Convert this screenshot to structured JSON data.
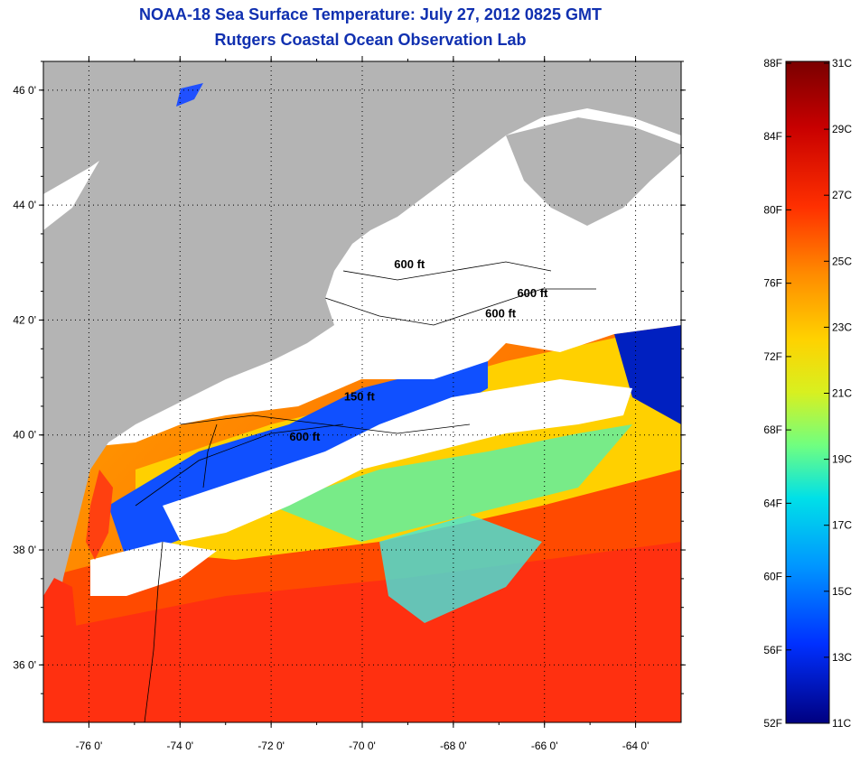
{
  "header": {
    "title": "NOAA-18 Sea Surface Temperature:  July 27, 2012 0825 GMT",
    "subtitle": "Rutgers Coastal Ocean Observation Lab"
  },
  "map": {
    "lat_range": [
      35,
      46.5
    ],
    "lon_range": [
      -77,
      -63
    ],
    "lat_ticks": [
      {
        "value": 46,
        "label": "46 0'"
      },
      {
        "value": 44,
        "label": "44 0'"
      },
      {
        "value": 42,
        "label": "42 0'"
      },
      {
        "value": 40,
        "label": "40 0'"
      },
      {
        "value": 38,
        "label": "38 0'"
      },
      {
        "value": 36,
        "label": "36 0'"
      }
    ],
    "lon_ticks": [
      {
        "value": -76,
        "label": "-76 0'"
      },
      {
        "value": -74,
        "label": "-74 0'"
      },
      {
        "value": -72,
        "label": "-72 0'"
      },
      {
        "value": -70,
        "label": "-70 0'"
      },
      {
        "value": -68,
        "label": "-68 0'"
      },
      {
        "value": -66,
        "label": "-66 0'"
      },
      {
        "value": -64,
        "label": "-64 0'"
      }
    ],
    "depth_labels": [
      {
        "text": "600 ft",
        "lon": -69.3,
        "lat": 42.9
      },
      {
        "text": "600 ft",
        "lon": -66.6,
        "lat": 42.4
      },
      {
        "text": "600 ft",
        "lon": -67.3,
        "lat": 42.05
      },
      {
        "text": "150 ft",
        "lon": -70.4,
        "lat": 40.6
      },
      {
        "text": "600 ft",
        "lon": -71.6,
        "lat": 39.9
      }
    ],
    "land_color": "#b4b4b4",
    "cloud_color": "#ffffff"
  },
  "colorbar": {
    "fahrenheit": [
      "88F",
      "84F",
      "80F",
      "76F",
      "72F",
      "68F",
      "64F",
      "60F",
      "56F",
      "52F"
    ],
    "celsius": [
      "31C",
      "29C",
      "27C",
      "25C",
      "23C",
      "21C",
      "19C",
      "17C",
      "15C",
      "13C",
      "11C"
    ],
    "colors": [
      "#7a0000",
      "#d00000",
      "#ff2a00",
      "#ff7a00",
      "#ffcc00",
      "#e6f000",
      "#80ff70",
      "#00e8e0",
      "#00a0ff",
      "#0030ff",
      "#000090"
    ]
  }
}
